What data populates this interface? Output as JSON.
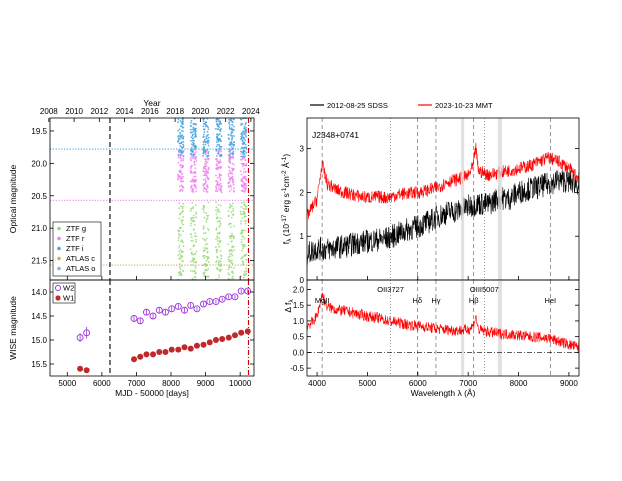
{
  "colors": {
    "ztf_g": "#98d87a",
    "ztf_r": "#ee82ee",
    "ztf_i": "#4aa3e0",
    "atlas_c": "#c9b15a",
    "atlas_o": "#8fb0d9",
    "w2": "#9b30d9",
    "w1": "#c0282a",
    "sdss": "#000000",
    "mmt": "#ff0000"
  },
  "chart_data": [
    {
      "type": "scatter",
      "panel": "optical-lightcurve",
      "top_axis": {
        "label": "Year",
        "ticks": [
          "2008",
          "2010",
          "2012",
          "2014",
          "2016",
          "2018",
          "2020",
          "2022",
          "2024"
        ],
        "year_to_mjd": [
          [
            2008,
            4466
          ],
          [
            2010,
            5197
          ],
          [
            2012,
            5927
          ],
          [
            2014,
            6658
          ],
          [
            2016,
            7388
          ],
          [
            2018,
            8119
          ],
          [
            2020,
            8849
          ],
          [
            2022,
            9580
          ],
          [
            2024,
            10310
          ]
        ]
      },
      "ylabel": "Optical magnitude",
      "y_ticks": [
        "19.5",
        "20.0",
        "20.5",
        "21.0",
        "21.5"
      ],
      "ylim": [
        21.8,
        19.3
      ],
      "xlim": [
        4500,
        10400
      ],
      "y_reversed": true,
      "legend": [
        "ZTF g",
        "ZTF r",
        "ZTF i",
        "ATLAS c",
        "ATLAS o"
      ],
      "legend_position": "bottom-left",
      "series": [
        {
          "name": "ZTF g",
          "color_key": "ztf_g",
          "mjd_range": [
            8200,
            10250
          ],
          "mag_range": [
            20.6,
            21.8
          ],
          "seasons": [
            8280,
            8650,
            9010,
            9380,
            9740,
            10100
          ]
        },
        {
          "name": "ZTF r",
          "color_key": "ztf_r",
          "mjd_range": [
            8200,
            10250
          ],
          "mag_range": [
            19.8,
            20.45
          ],
          "seasons": [
            8280,
            8650,
            9010,
            9380,
            9740,
            10100
          ]
        },
        {
          "name": "ZTF i",
          "color_key": "ztf_i",
          "mjd_range": [
            8200,
            10250
          ],
          "mag_range": [
            19.3,
            19.9
          ],
          "seasons": [
            8280,
            8650,
            9010,
            9380,
            9740,
            10100
          ]
        }
      ],
      "reference_lines": [
        {
          "mag": 19.78,
          "color_key": "ztf_i",
          "style": "dotted"
        },
        {
          "mag": 20.57,
          "color_key": "ztf_r",
          "style": "dotted"
        },
        {
          "mag": 21.57,
          "color_key": "atlas_c",
          "style": "dotted"
        }
      ],
      "vertical_lines": [
        {
          "mjd": 6235,
          "color": "#000000",
          "style": "dashed"
        },
        {
          "mjd": 10240,
          "color": "#cc0000",
          "style": "dash-dot"
        }
      ]
    },
    {
      "type": "scatter",
      "panel": "wise-lightcurve",
      "xlabel": "MJD - 50000 [days]",
      "ylabel": "WISE magnitude",
      "x_ticks": [
        "5000",
        "6000",
        "7000",
        "8000",
        "9000",
        "10000"
      ],
      "xlim": [
        4500,
        10400
      ],
      "y_ticks": [
        "14.0",
        "14.5",
        "15.0",
        "15.5"
      ],
      "ylim": [
        15.75,
        13.75
      ],
      "y_reversed": true,
      "legend": [
        "W2",
        "W1"
      ],
      "legend_position": "top-left",
      "series": [
        {
          "name": "W2",
          "color_key": "w2",
          "marker": "open-circle-errorbar",
          "x": [
            5370,
            5560,
            6930,
            7110,
            7290,
            7480,
            7660,
            7840,
            8020,
            8210,
            8390,
            8570,
            8750,
            8940,
            9120,
            9300,
            9480,
            9670,
            9850,
            10030,
            10220
          ],
          "y": [
            14.95,
            14.85,
            14.55,
            14.6,
            14.42,
            14.5,
            14.38,
            14.42,
            14.35,
            14.3,
            14.38,
            14.28,
            14.35,
            14.25,
            14.2,
            14.2,
            14.15,
            14.1,
            14.1,
            13.98,
            13.98
          ],
          "err": [
            0.09,
            0.12,
            0.07,
            0.06,
            0.06,
            0.05,
            0.05,
            0.05,
            0.05,
            0.05,
            0.05,
            0.05,
            0.04,
            0.04,
            0.04,
            0.04,
            0.04,
            0.04,
            0.04,
            0.04,
            0.04
          ]
        },
        {
          "name": "W1",
          "color_key": "w1",
          "marker": "filled-circle",
          "x": [
            5370,
            5560,
            6930,
            7110,
            7290,
            7480,
            7660,
            7840,
            8020,
            8210,
            8390,
            8570,
            8750,
            8940,
            9120,
            9300,
            9480,
            9670,
            9850,
            10030,
            10220
          ],
          "y": [
            15.6,
            15.63,
            15.4,
            15.35,
            15.3,
            15.3,
            15.25,
            15.25,
            15.2,
            15.2,
            15.15,
            15.18,
            15.12,
            15.1,
            15.05,
            15.0,
            14.98,
            14.95,
            14.9,
            14.85,
            14.82
          ]
        }
      ]
    },
    {
      "type": "line",
      "panel": "spectra",
      "legend": [
        "2012-08-25 SDSS",
        "2023-10-23 MMT"
      ],
      "legend_position": "top",
      "object_label": "J2348+0741",
      "ylabel_parts": [
        "f",
        "λ",
        " (10",
        "-17",
        " erg s",
        "-1",
        "cm",
        "-2",
        " Å",
        "-1",
        ")"
      ],
      "xlim": [
        3800,
        9200
      ],
      "ylim": [
        0,
        3.7
      ],
      "y_ticks": [
        "0",
        "1",
        "2",
        "3"
      ],
      "series": [
        {
          "name": "2012-08-25 SDSS",
          "color_key": "sdss",
          "x": [
            3800,
            4000,
            4200,
            4400,
            4600,
            4800,
            5000,
            5200,
            5400,
            5600,
            5800,
            6000,
            6200,
            6400,
            6600,
            6800,
            7000,
            7200,
            7400,
            7600,
            7800,
            8000,
            8200,
            8400,
            8600,
            8800,
            9000,
            9200
          ],
          "y": [
            0.6,
            0.72,
            0.7,
            0.75,
            0.78,
            0.85,
            0.88,
            0.92,
            0.95,
            1.05,
            1.15,
            1.22,
            1.32,
            1.45,
            1.55,
            1.58,
            1.68,
            1.75,
            1.72,
            1.88,
            1.85,
            2.0,
            2.08,
            2.12,
            2.2,
            2.28,
            2.25,
            2.2
          ]
        },
        {
          "name": "2023-10-23 MMT",
          "color_key": "mmt",
          "x": [
            3800,
            3900,
            4000,
            4100,
            4200,
            4400,
            4600,
            4800,
            5000,
            5200,
            5400,
            5600,
            5800,
            6000,
            6200,
            6400,
            6600,
            6800,
            7000,
            7100,
            7150,
            7200,
            7400,
            7600,
            7800,
            8000,
            8200,
            8400,
            8600,
            8800,
            9000,
            9200
          ],
          "y": [
            1.45,
            1.65,
            1.85,
            2.65,
            2.2,
            2.05,
            1.98,
            1.92,
            1.88,
            1.9,
            1.88,
            1.95,
            1.98,
            2.0,
            2.05,
            2.12,
            2.25,
            2.3,
            2.38,
            2.6,
            3.05,
            2.5,
            2.4,
            2.45,
            2.5,
            2.55,
            2.6,
            2.7,
            2.8,
            2.7,
            2.55,
            2.3
          ]
        }
      ]
    },
    {
      "type": "line",
      "panel": "difference-spectrum",
      "xlabel": "Wavelength λ (Å)",
      "ylabel": "Δ f",
      "ylabel_sub": "λ",
      "x_ticks": [
        "4000",
        "5000",
        "6000",
        "7000",
        "8000",
        "9000"
      ],
      "xlim": [
        3800,
        9200
      ],
      "ylim": [
        -0.75,
        2.3
      ],
      "y_ticks": [
        "-0.5",
        "0.0",
        "0.5",
        "1.0",
        "1.5",
        "2.0"
      ],
      "series": [
        {
          "name": "difference",
          "color_key": "mmt",
          "x": [
            3800,
            3900,
            4000,
            4100,
            4200,
            4400,
            4600,
            4800,
            5000,
            5200,
            5400,
            5600,
            5800,
            6000,
            6200,
            6400,
            6600,
            6800,
            7000,
            7100,
            7150,
            7200,
            7400,
            7600,
            7800,
            8000,
            8200,
            8400,
            8600,
            8800,
            9000,
            9200
          ],
          "y": [
            0.85,
            0.95,
            1.15,
            1.85,
            1.45,
            1.35,
            1.3,
            1.22,
            1.15,
            1.1,
            1.0,
            0.95,
            0.88,
            0.85,
            0.8,
            0.75,
            0.72,
            0.7,
            0.72,
            0.85,
            1.15,
            0.72,
            0.65,
            0.6,
            0.58,
            0.55,
            0.5,
            0.48,
            0.45,
            0.35,
            0.25,
            0.15
          ]
        }
      ],
      "zero_line": 0,
      "line_labels": [
        {
          "text": "MgII",
          "wavelength": 4100
        },
        {
          "text": "OII3727",
          "wavelength": 5460
        },
        {
          "text": "Hδ",
          "wavelength": 5990
        },
        {
          "text": "Hγ",
          "wavelength": 6360
        },
        {
          "text": "Hβ",
          "wavelength": 7110
        },
        {
          "text": "OIII5007",
          "wavelength": 7320
        },
        {
          "text": "HeI",
          "wavelength": 8630
        }
      ],
      "dashed_line_wavelengths": [
        4100,
        5990,
        6360,
        7110,
        8630
      ],
      "dotted_line_wavelengths": [
        5460,
        7320
      ],
      "telluric_bands": [
        [
          6860,
          6920
        ],
        [
          7590,
          7670
        ]
      ]
    }
  ]
}
